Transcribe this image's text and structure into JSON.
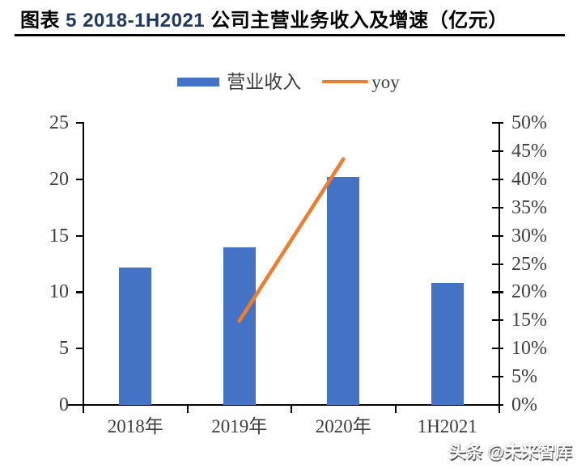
{
  "page": {
    "background": "#ffffff"
  },
  "title": {
    "segments": [
      {
        "text": "图表 ",
        "color": "#000000"
      },
      {
        "text": "5 2018-1H2021",
        "color": "#1F3864"
      },
      {
        "text": " 公司主营业务收入及增速（亿元）",
        "color": "#000000"
      }
    ]
  },
  "legend": {
    "items": [
      {
        "label": "营业收入",
        "marker": "bar-swatch",
        "color": "#4472C4"
      },
      {
        "label": "yoy",
        "marker": "line-swatch",
        "color": "#ED7D31"
      }
    ]
  },
  "watermark": {
    "text": "头条 @未来智库"
  },
  "chart_data": {
    "type": "bar",
    "title": "图表 5 2018-1H2021 公司主营业务收入及增速（亿元）",
    "categories": [
      "2018年",
      "2019年",
      "2020年",
      "1H2021"
    ],
    "series": [
      {
        "name": "营业收入",
        "type": "bar",
        "axis": "left",
        "color": "#4472C4",
        "values": [
          12.2,
          14.0,
          20.2,
          10.8
        ]
      },
      {
        "name": "yoy",
        "type": "line",
        "axis": "right",
        "color": "#ED7D31",
        "values": [
          null,
          14.9,
          43.6,
          null
        ]
      }
    ],
    "left_axis": {
      "min": 0,
      "max": 25,
      "tick_step": 5,
      "tick_labels": [
        "0",
        "5",
        "10",
        "15",
        "20",
        "25"
      ]
    },
    "right_axis": {
      "min": 0,
      "max": 50,
      "tick_step": 5,
      "tick_labels": [
        "0%",
        "5%",
        "10%",
        "15%",
        "20%",
        "25%",
        "30%",
        "35%",
        "40%",
        "45%",
        "50%"
      ]
    },
    "grid": false,
    "legend_position": "top",
    "axis_color": "#000000",
    "tick_label_color": "#3d3d3d"
  }
}
